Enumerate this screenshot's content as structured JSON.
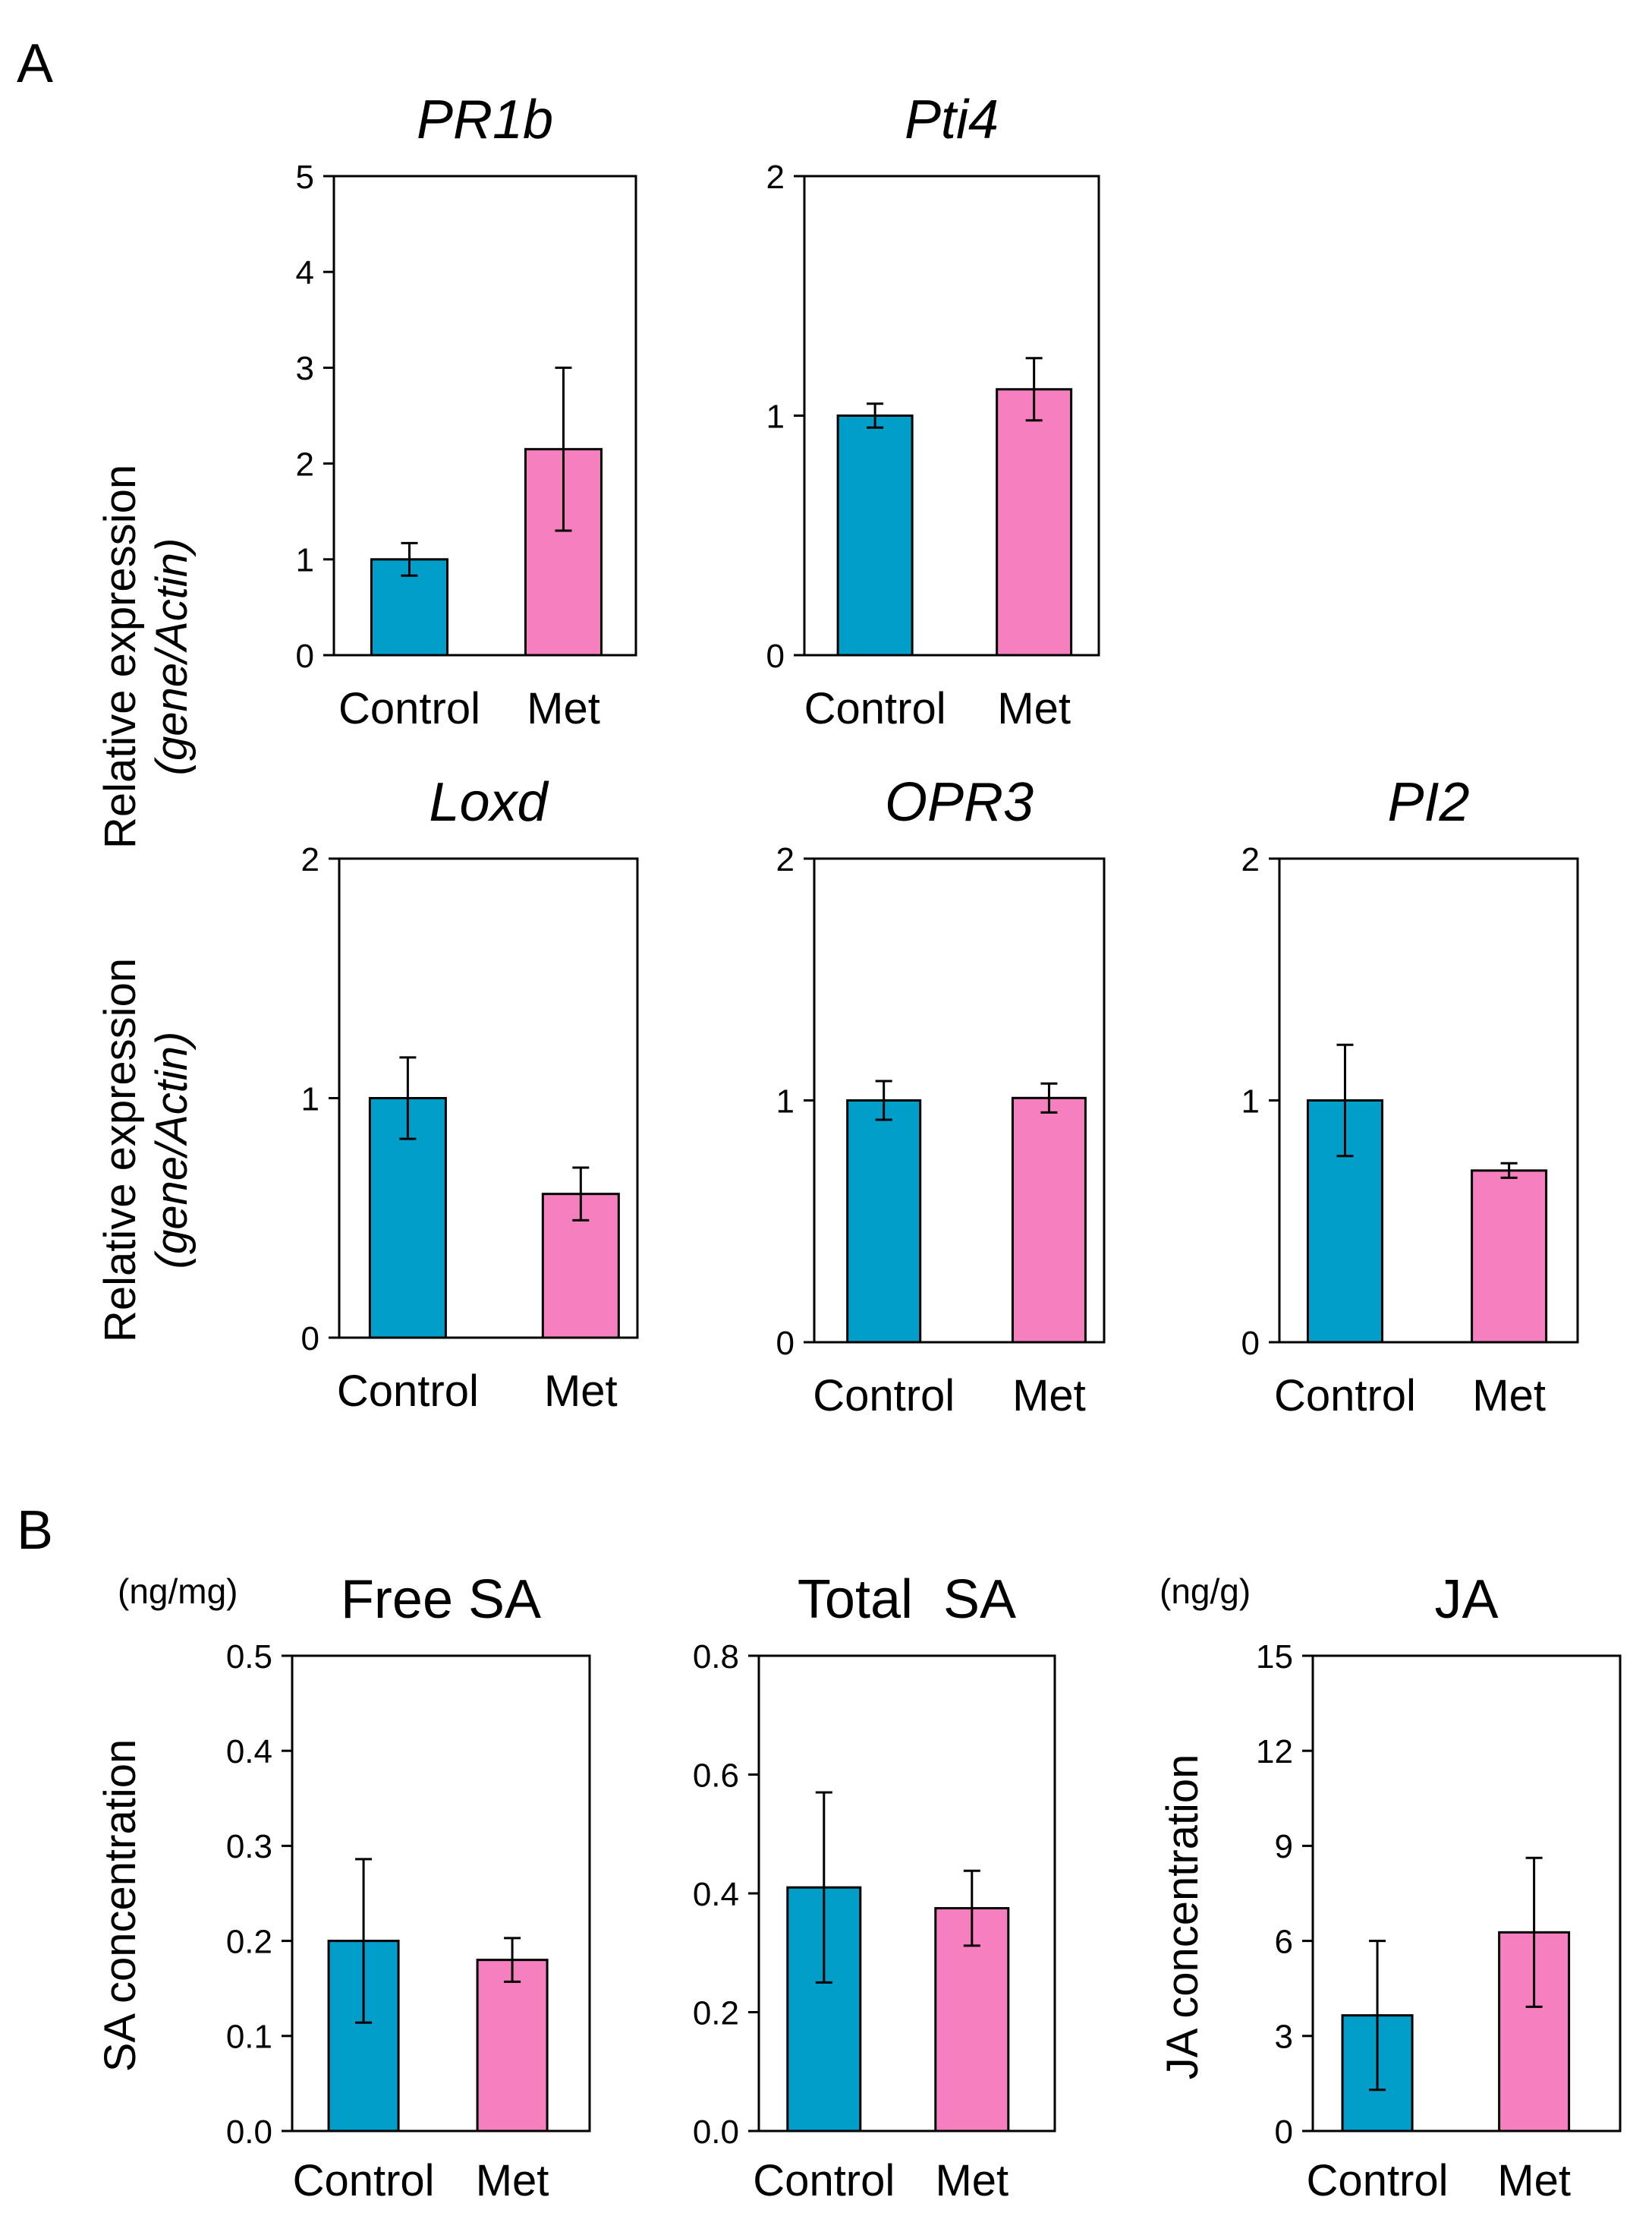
{
  "figure": {
    "panel_a_label": "A",
    "panel_b_label": "B",
    "ylabel_expression_main": "Relative expression",
    "ylabel_expression_sub": "(gene/Actin)",
    "ylabel_sa": "SA concentration",
    "ylabel_ja": "JA concentration",
    "unit_sa": "(ng/mg)",
    "unit_ja": "(ng/g)"
  },
  "colors": {
    "control": "#009ec8",
    "met": "#f57fbf",
    "axis": "#000000"
  },
  "chart_data": [
    {
      "id": "pr1b",
      "type": "bar",
      "title": "PR1b",
      "title_italic": true,
      "categories": [
        "Control",
        "Met"
      ],
      "values": [
        1.0,
        2.15
      ],
      "errors": [
        0.17,
        0.85
      ],
      "ylim": [
        0,
        5
      ],
      "yticks": [
        0,
        1,
        2,
        3,
        4,
        5
      ],
      "ytick_labels": [
        "0",
        "1",
        "2",
        "3",
        "4",
        "5"
      ]
    },
    {
      "id": "pti4",
      "type": "bar",
      "title": "Pti4",
      "title_italic": true,
      "categories": [
        "Control",
        "Met"
      ],
      "values": [
        1.0,
        1.11
      ],
      "errors": [
        0.05,
        0.13
      ],
      "ylim": [
        0,
        2
      ],
      "yticks": [
        0,
        1,
        2
      ],
      "ytick_labels": [
        "0",
        "1",
        "2"
      ]
    },
    {
      "id": "loxd",
      "type": "bar",
      "title": "Loxd",
      "title_italic": true,
      "categories": [
        "Control",
        "Met"
      ],
      "values": [
        1.0,
        0.6
      ],
      "errors": [
        0.17,
        0.11
      ],
      "ylim": [
        0,
        2
      ],
      "yticks": [
        0,
        1,
        2
      ],
      "ytick_labels": [
        "0",
        "1",
        "2"
      ]
    },
    {
      "id": "opr3",
      "type": "bar",
      "title": "OPR3",
      "title_italic": true,
      "categories": [
        "Control",
        "Met"
      ],
      "values": [
        1.0,
        1.01
      ],
      "errors": [
        0.08,
        0.06
      ],
      "ylim": [
        0,
        2
      ],
      "yticks": [
        0,
        1,
        2
      ],
      "ytick_labels": [
        "0",
        "1",
        "2"
      ]
    },
    {
      "id": "pi2",
      "type": "bar",
      "title": "PI2",
      "title_italic": true,
      "categories": [
        "Control",
        "Met"
      ],
      "values": [
        1.0,
        0.71
      ],
      "errors": [
        0.23,
        0.03
      ],
      "ylim": [
        0,
        2
      ],
      "yticks": [
        0,
        1,
        2
      ],
      "ytick_labels": [
        "0",
        "1",
        "2"
      ]
    },
    {
      "id": "free-sa",
      "type": "bar",
      "title": "Free SA",
      "title_italic": false,
      "categories": [
        "Control",
        "Met"
      ],
      "values": [
        0.2,
        0.18
      ],
      "errors": [
        0.086,
        0.023
      ],
      "ylim": [
        0,
        0.5
      ],
      "yticks": [
        0,
        0.1,
        0.2,
        0.3,
        0.4,
        0.5
      ],
      "ytick_labels": [
        "0.0",
        "0.1",
        "0.2",
        "0.3",
        "0.4",
        "0.5"
      ]
    },
    {
      "id": "total-sa",
      "type": "bar",
      "title": "Total  SA",
      "title_italic": false,
      "categories": [
        "Control",
        "Met"
      ],
      "values": [
        0.41,
        0.375
      ],
      "errors": [
        0.16,
        0.063
      ],
      "ylim": [
        0,
        0.8
      ],
      "yticks": [
        0,
        0.2,
        0.4,
        0.6,
        0.8
      ],
      "ytick_labels": [
        "0.0",
        "0.2",
        "0.4",
        "0.6",
        "0.8"
      ]
    },
    {
      "id": "ja",
      "type": "bar",
      "title": "JA",
      "title_italic": false,
      "categories": [
        "Control",
        "Met"
      ],
      "values": [
        3.65,
        6.27
      ],
      "errors": [
        2.35,
        2.35
      ],
      "ylim": [
        0,
        15
      ],
      "yticks": [
        0,
        3,
        6,
        9,
        12,
        15
      ],
      "ytick_labels": [
        "0",
        "3",
        "6",
        "9",
        "12",
        "15"
      ]
    }
  ]
}
